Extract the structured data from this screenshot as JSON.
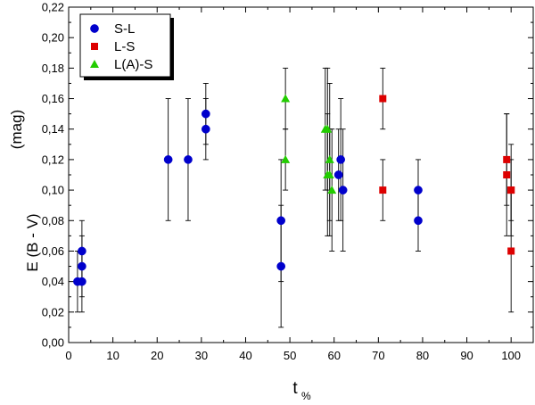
{
  "chart_data": {
    "type": "scatter",
    "xlabel": "t",
    "xlabel_subscript": "%",
    "ylabel": "E (B - V)",
    "ylabel_unit": "(mag)",
    "xlim": [
      0,
      105
    ],
    "ylim": [
      0.0,
      0.22
    ],
    "x_ticks": [
      0,
      10,
      20,
      30,
      40,
      50,
      60,
      70,
      80,
      90,
      100
    ],
    "y_ticks": [
      0.0,
      0.02,
      0.04,
      0.06,
      0.08,
      0.1,
      0.12,
      0.14,
      0.16,
      0.18,
      0.2,
      0.22
    ],
    "y_tick_labels": [
      "0,00",
      "0,02",
      "0,04",
      "0,06",
      "0,08",
      "0,10",
      "0,12",
      "0,14",
      "0,16",
      "0,18",
      "0,20",
      "0,22"
    ],
    "x_tick_labels": [
      "0",
      "10",
      "20",
      "30",
      "40",
      "50",
      "60",
      "70",
      "80",
      "90",
      "100"
    ],
    "grid": false,
    "legend_position": "top-left",
    "series": [
      {
        "name": "S-L",
        "marker": "circle",
        "color": "#0000cc",
        "points": [
          {
            "x": 2,
            "y": 0.04,
            "err": 0.02
          },
          {
            "x": 3,
            "y": 0.04,
            "err": 0.02
          },
          {
            "x": 3,
            "y": 0.05,
            "err": 0.02
          },
          {
            "x": 3,
            "y": 0.06,
            "err": 0.02
          },
          {
            "x": 22.5,
            "y": 0.12,
            "err": 0.04
          },
          {
            "x": 27,
            "y": 0.12,
            "err": 0.04
          },
          {
            "x": 31,
            "y": 0.14,
            "err": 0.02
          },
          {
            "x": 31,
            "y": 0.15,
            "err": 0.02
          },
          {
            "x": 48,
            "y": 0.05,
            "err": 0.04
          },
          {
            "x": 48,
            "y": 0.08,
            "err": 0.04
          },
          {
            "x": 61,
            "y": 0.11,
            "err": 0.03
          },
          {
            "x": 61.5,
            "y": 0.12,
            "err": 0.04
          },
          {
            "x": 62,
            "y": 0.1,
            "err": 0.04
          },
          {
            "x": 79,
            "y": 0.08,
            "err": 0.02
          },
          {
            "x": 79,
            "y": 0.1,
            "err": 0.02
          }
        ]
      },
      {
        "name": "L-S",
        "marker": "square",
        "color": "#dd0000",
        "points": [
          {
            "x": 71,
            "y": 0.16,
            "err": 0.02
          },
          {
            "x": 71,
            "y": 0.1,
            "err": 0.02
          },
          {
            "x": 99,
            "y": 0.12,
            "err": 0.03
          },
          {
            "x": 99,
            "y": 0.11,
            "err": 0.04
          },
          {
            "x": 100,
            "y": 0.1,
            "err": 0.03
          },
          {
            "x": 100,
            "y": 0.1,
            "err": 0.02
          },
          {
            "x": 100,
            "y": 0.06,
            "err": 0.04
          }
        ]
      },
      {
        "name": "L(A)-S",
        "marker": "triangle",
        "color": "#22cc00",
        "points": [
          {
            "x": 49,
            "y": 0.16,
            "err": 0.02
          },
          {
            "x": 49,
            "y": 0.12,
            "err": 0.02
          },
          {
            "x": 58,
            "y": 0.14,
            "err": 0.04
          },
          {
            "x": 58.5,
            "y": 0.14,
            "err": 0.04
          },
          {
            "x": 58.5,
            "y": 0.11,
            "err": 0.04
          },
          {
            "x": 59,
            "y": 0.12,
            "err": 0.05
          },
          {
            "x": 59,
            "y": 0.11,
            "err": 0.03
          },
          {
            "x": 59.5,
            "y": 0.1,
            "err": 0.04
          }
        ]
      }
    ]
  }
}
